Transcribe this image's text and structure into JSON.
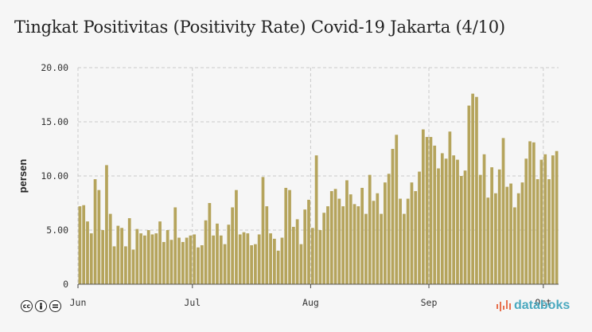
{
  "title": "Tingkat Positivitas (Positivity Rate) Covid-19 Jakarta (4/10)",
  "brand": "databoks",
  "license_icons": [
    "cc-icon",
    "attribution-icon",
    "no-derivatives-icon"
  ],
  "colors": {
    "bar": "#b5a45c",
    "grid": "#c9c9c9",
    "background": "#f6f6f6",
    "brand": "#4aa9bf"
  },
  "chart_data": {
    "type": "bar",
    "ylabel": "persen",
    "ylim": [
      0,
      20
    ],
    "yticks": [
      "0",
      "5.00",
      "10.00",
      "15.00",
      "20.00"
    ],
    "xticks": [
      {
        "label": "Jun",
        "date": "2020-06-01"
      },
      {
        "label": "Jul",
        "date": "2020-07-01"
      },
      {
        "label": "Aug",
        "date": "2020-08-01"
      },
      {
        "label": "Sep",
        "date": "2020-09-01"
      },
      {
        "label": "Oct",
        "date": "2020-10-01"
      }
    ],
    "grid": true,
    "x": [
      "2020-06-01",
      "2020-06-02",
      "2020-06-03",
      "2020-06-04",
      "2020-06-05",
      "2020-06-06",
      "2020-06-07",
      "2020-06-08",
      "2020-06-09",
      "2020-06-10",
      "2020-06-11",
      "2020-06-12",
      "2020-06-13",
      "2020-06-14",
      "2020-06-15",
      "2020-06-16",
      "2020-06-17",
      "2020-06-18",
      "2020-06-19",
      "2020-06-20",
      "2020-06-21",
      "2020-06-22",
      "2020-06-23",
      "2020-06-24",
      "2020-06-25",
      "2020-06-26",
      "2020-06-27",
      "2020-06-28",
      "2020-06-29",
      "2020-06-30",
      "2020-07-01",
      "2020-07-02",
      "2020-07-03",
      "2020-07-04",
      "2020-07-05",
      "2020-07-06",
      "2020-07-07",
      "2020-07-08",
      "2020-07-09",
      "2020-07-10",
      "2020-07-11",
      "2020-07-12",
      "2020-07-13",
      "2020-07-14",
      "2020-07-15",
      "2020-07-16",
      "2020-07-17",
      "2020-07-18",
      "2020-07-19",
      "2020-07-20",
      "2020-07-21",
      "2020-07-22",
      "2020-07-23",
      "2020-07-24",
      "2020-07-25",
      "2020-07-26",
      "2020-07-27",
      "2020-07-28",
      "2020-07-29",
      "2020-07-30",
      "2020-07-31",
      "2020-08-01",
      "2020-08-02",
      "2020-08-03",
      "2020-08-04",
      "2020-08-05",
      "2020-08-06",
      "2020-08-07",
      "2020-08-08",
      "2020-08-09",
      "2020-08-10",
      "2020-08-11",
      "2020-08-12",
      "2020-08-13",
      "2020-08-14",
      "2020-08-15",
      "2020-08-16",
      "2020-08-17",
      "2020-08-18",
      "2020-08-19",
      "2020-08-20",
      "2020-08-21",
      "2020-08-22",
      "2020-08-23",
      "2020-08-24",
      "2020-08-25",
      "2020-08-26",
      "2020-08-27",
      "2020-08-28",
      "2020-08-29",
      "2020-08-30",
      "2020-08-31",
      "2020-09-01",
      "2020-09-02",
      "2020-09-03",
      "2020-09-04",
      "2020-09-05",
      "2020-09-06",
      "2020-09-07",
      "2020-09-08",
      "2020-09-09",
      "2020-09-10",
      "2020-09-11",
      "2020-09-12",
      "2020-09-13",
      "2020-09-14",
      "2020-09-15",
      "2020-09-16",
      "2020-09-17",
      "2020-09-18",
      "2020-09-19",
      "2020-09-20",
      "2020-09-21",
      "2020-09-22",
      "2020-09-23",
      "2020-09-24",
      "2020-09-25",
      "2020-09-26",
      "2020-09-27",
      "2020-09-28",
      "2020-09-29",
      "2020-09-30",
      "2020-10-01",
      "2020-10-02",
      "2020-10-03",
      "2020-10-04"
    ],
    "values": [
      7.2,
      7.3,
      5.8,
      4.7,
      9.7,
      8.7,
      5.0,
      11.0,
      6.5,
      3.5,
      5.4,
      5.2,
      3.5,
      6.1,
      3.2,
      5.1,
      4.7,
      4.5,
      5.0,
      4.6,
      4.7,
      5.8,
      3.9,
      5.0,
      4.1,
      7.1,
      4.3,
      3.9,
      4.3,
      4.5,
      4.6,
      3.4,
      3.6,
      5.9,
      7.5,
      4.5,
      5.6,
      4.5,
      3.7,
      5.5,
      7.1,
      8.7,
      4.6,
      4.8,
      4.7,
      3.6,
      3.7,
      4.6,
      9.9,
      7.2,
      4.7,
      4.2,
      3.1,
      4.3,
      8.9,
      8.7,
      5.3,
      6.0,
      3.7,
      6.9,
      7.8,
      5.2,
      11.9,
      5.0,
      6.6,
      7.2,
      8.6,
      8.8,
      7.9,
      7.2,
      9.6,
      8.3,
      7.4,
      7.2,
      8.9,
      6.5,
      10.1,
      7.7,
      8.4,
      6.5,
      9.4,
      10.2,
      12.5,
      13.8,
      7.9,
      6.5,
      7.9,
      9.4,
      8.6,
      10.4,
      14.3,
      13.6,
      13.6,
      12.8,
      10.7,
      12.1,
      11.6,
      14.1,
      11.9,
      11.5,
      10.0,
      10.5,
      16.5,
      17.6,
      17.3,
      10.1,
      12.0,
      8.0,
      10.8,
      8.4,
      10.6,
      13.5,
      9.0,
      9.3,
      7.1,
      8.4,
      9.4,
      11.6,
      13.2,
      13.1,
      9.7,
      11.5,
      12.0,
      9.7,
      11.9,
      12.3
    ]
  }
}
